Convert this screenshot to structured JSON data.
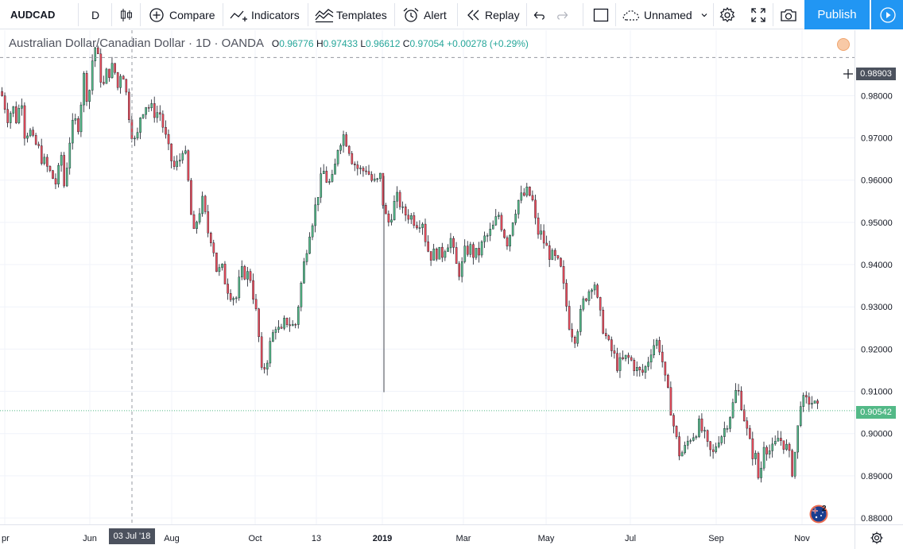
{
  "toolbar": {
    "symbol": "AUDCAD",
    "interval": "D",
    "compare_label": "Compare",
    "indicators_label": "Indicators",
    "templates_label": "Templates",
    "alert_label": "Alert",
    "replay_label": "Replay",
    "layout_name": "Unnamed",
    "publish_label": "Publish"
  },
  "legend": {
    "title": "Australian Dollar/Canadian Dollar · 1D · OANDA",
    "open_label": "O",
    "open": "0.96776",
    "high_label": "H",
    "high": "0.97433",
    "low_label": "L",
    "low": "0.96612",
    "close_label": "C",
    "close": "0.97054",
    "change": "+0.00278 (+0.29%)"
  },
  "crosshair": {
    "price": "0.98903",
    "date": "03 Jul '18"
  },
  "last_price": "0.90542",
  "events_count": "2",
  "colors": {
    "up": "#53b987",
    "down": "#eb4d5c",
    "accent": "#2196f3",
    "grid": "#f0f3fa"
  },
  "chart_data": {
    "type": "candlestick",
    "y_ticks": [
      "0.98000",
      "0.97000",
      "0.96000",
      "0.95000",
      "0.94000",
      "0.93000",
      "0.92000",
      "0.91000",
      "0.90000",
      "0.89000",
      "0.88000"
    ],
    "x_ticks": [
      "Apr",
      "Jun",
      "Aug",
      "Oct",
      "13",
      "2019",
      "Mar",
      "May",
      "Jul",
      "Sep",
      "Nov"
    ],
    "ylim": [
      0.8785,
      0.9955
    ],
    "path": [
      [
        0,
        0.981
      ],
      [
        6,
        0.977
      ],
      [
        10,
        0.974
      ],
      [
        14,
        0.978
      ],
      [
        20,
        0.974
      ],
      [
        26,
        0.98
      ],
      [
        30,
        0.971
      ],
      [
        36,
        0.972
      ],
      [
        40,
        0.969
      ],
      [
        46,
        0.968
      ],
      [
        52,
        0.965
      ],
      [
        58,
        0.963
      ],
      [
        64,
        0.961
      ],
      [
        70,
        0.959
      ],
      [
        76,
        0.966
      ],
      [
        80,
        0.958
      ],
      [
        86,
        0.969
      ],
      [
        92,
        0.974
      ],
      [
        98,
        0.973
      ],
      [
        104,
        0.985
      ],
      [
        110,
        0.978
      ],
      [
        114,
        0.987
      ],
      [
        118,
        0.992
      ],
      [
        124,
        0.987
      ],
      [
        128,
        0.981
      ],
      [
        132,
        0.985
      ],
      [
        138,
        0.986
      ],
      [
        142,
        0.987
      ],
      [
        148,
        0.981
      ],
      [
        152,
        0.988
      ],
      [
        158,
        0.98
      ],
      [
        164,
        0.972
      ],
      [
        170,
        0.968
      ],
      [
        176,
        0.976
      ],
      [
        182,
        0.978
      ],
      [
        188,
        0.977
      ],
      [
        194,
        0.976
      ],
      [
        200,
        0.976
      ],
      [
        206,
        0.971
      ],
      [
        212,
        0.966
      ],
      [
        218,
        0.963
      ],
      [
        224,
        0.964
      ],
      [
        230,
        0.969
      ],
      [
        236,
        0.959
      ],
      [
        242,
        0.946
      ],
      [
        248,
        0.952
      ],
      [
        254,
        0.955
      ],
      [
        260,
        0.948
      ],
      [
        266,
        0.946
      ],
      [
        272,
        0.938
      ],
      [
        278,
        0.939
      ],
      [
        284,
        0.935
      ],
      [
        290,
        0.933
      ],
      [
        296,
        0.932
      ],
      [
        302,
        0.938
      ],
      [
        308,
        0.938
      ],
      [
        314,
        0.937
      ],
      [
        320,
        0.93
      ],
      [
        324,
        0.924
      ],
      [
        328,
        0.914
      ],
      [
        334,
        0.917
      ],
      [
        340,
        0.922
      ],
      [
        346,
        0.926
      ],
      [
        352,
        0.923
      ],
      [
        358,
        0.927
      ],
      [
        364,
        0.926
      ],
      [
        370,
        0.925
      ],
      [
        376,
        0.933
      ],
      [
        382,
        0.941
      ],
      [
        388,
        0.948
      ],
      [
        394,
        0.952
      ],
      [
        400,
        0.958
      ],
      [
        406,
        0.962
      ],
      [
        412,
        0.959
      ],
      [
        418,
        0.96
      ],
      [
        424,
        0.968
      ],
      [
        430,
        0.971
      ],
      [
        436,
        0.969
      ],
      [
        442,
        0.965
      ],
      [
        448,
        0.963
      ],
      [
        454,
        0.962
      ],
      [
        460,
        0.963
      ],
      [
        466,
        0.96
      ],
      [
        472,
        0.959
      ],
      [
        478,
        0.961
      ],
      [
        482,
        0.952
      ],
      [
        488,
        0.95
      ],
      [
        494,
        0.954
      ],
      [
        500,
        0.956
      ],
      [
        506,
        0.952
      ],
      [
        512,
        0.952
      ],
      [
        518,
        0.951
      ],
      [
        524,
        0.95
      ],
      [
        530,
        0.951
      ],
      [
        536,
        0.944
      ],
      [
        542,
        0.942
      ],
      [
        548,
        0.943
      ],
      [
        554,
        0.942
      ],
      [
        560,
        0.945
      ],
      [
        566,
        0.946
      ],
      [
        572,
        0.94
      ],
      [
        578,
        0.938
      ],
      [
        584,
        0.943
      ],
      [
        590,
        0.944
      ],
      [
        596,
        0.942
      ],
      [
        602,
        0.943
      ],
      [
        608,
        0.946
      ],
      [
        614,
        0.947
      ],
      [
        620,
        0.949
      ],
      [
        626,
        0.952
      ],
      [
        632,
        0.948
      ],
      [
        638,
        0.945
      ],
      [
        644,
        0.951
      ],
      [
        650,
        0.955
      ],
      [
        656,
        0.956
      ],
      [
        662,
        0.957
      ],
      [
        668,
        0.956
      ],
      [
        674,
        0.948
      ],
      [
        680,
        0.947
      ],
      [
        686,
        0.944
      ],
      [
        692,
        0.942
      ],
      [
        698,
        0.941
      ],
      [
        704,
        0.939
      ],
      [
        710,
        0.932
      ],
      [
        716,
        0.925
      ],
      [
        722,
        0.923
      ],
      [
        728,
        0.927
      ],
      [
        734,
        0.932
      ],
      [
        740,
        0.934
      ],
      [
        746,
        0.937
      ],
      [
        752,
        0.929
      ],
      [
        758,
        0.925
      ],
      [
        764,
        0.921
      ],
      [
        770,
        0.919
      ],
      [
        776,
        0.916
      ],
      [
        782,
        0.917
      ],
      [
        788,
        0.918
      ],
      [
        794,
        0.917
      ],
      [
        800,
        0.915
      ],
      [
        806,
        0.914
      ],
      [
        812,
        0.916
      ],
      [
        818,
        0.92
      ],
      [
        824,
        0.922
      ],
      [
        830,
        0.92
      ],
      [
        836,
        0.912
      ],
      [
        842,
        0.907
      ],
      [
        848,
        0.9
      ],
      [
        854,
        0.895
      ],
      [
        860,
        0.896
      ],
      [
        866,
        0.899
      ],
      [
        872,
        0.9
      ],
      [
        878,
        0.902
      ],
      [
        884,
        0.9
      ],
      [
        890,
        0.896
      ],
      [
        896,
        0.895
      ],
      [
        902,
        0.899
      ],
      [
        908,
        0.9
      ],
      [
        914,
        0.903
      ],
      [
        920,
        0.906
      ],
      [
        926,
        0.911
      ],
      [
        932,
        0.907
      ],
      [
        938,
        0.901
      ],
      [
        944,
        0.896
      ],
      [
        950,
        0.894
      ],
      [
        954,
        0.888
      ],
      [
        960,
        0.898
      ],
      [
        966,
        0.896
      ],
      [
        972,
        0.896
      ],
      [
        978,
        0.899
      ],
      [
        984,
        0.898
      ],
      [
        990,
        0.896
      ],
      [
        996,
        0.891
      ],
      [
        1002,
        0.9
      ],
      [
        1006,
        0.908
      ],
      [
        1012,
        0.907
      ],
      [
        1018,
        0.908
      ],
      [
        1022,
        0.907
      ],
      [
        1028,
        0.9055
      ]
    ]
  }
}
